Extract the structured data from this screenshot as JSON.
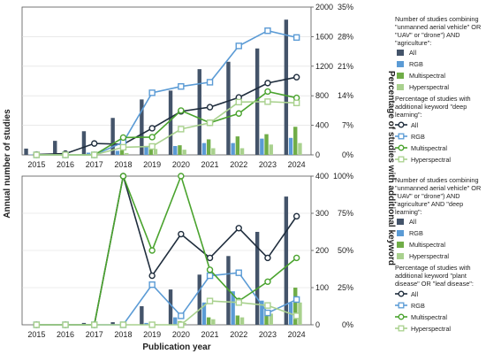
{
  "labels": {
    "y_left": "Annual number of studies",
    "y_right": "Percentage of studies with additional keyword",
    "x": "Publication year"
  },
  "colors": {
    "all_bar": "#44546a",
    "rgb_bar": "#5b9bd5",
    "multi_bar": "#70ad47",
    "hyper_bar": "#a9d18e",
    "all_line": "#1f2d3d",
    "rgb_line": "#5b9bd5",
    "multi_line": "#4aa32e",
    "hyper_line": "#a9d18e"
  },
  "chart_data": [
    {
      "type": "bar",
      "categories": [
        "2015",
        "2016",
        "2017",
        "2018",
        "2019",
        "2020",
        "2021",
        "2022",
        "2023",
        "2024"
      ],
      "series": [
        {
          "name": "All",
          "kind": "bar",
          "axis": "left",
          "values": [
            85,
            190,
            320,
            500,
            750,
            870,
            1160,
            1260,
            1440,
            1830
          ]
        },
        {
          "name": "RGB",
          "kind": "bar",
          "axis": "left",
          "values": [
            5,
            15,
            30,
            55,
            110,
            120,
            160,
            160,
            220,
            230
          ]
        },
        {
          "name": "Multispectral",
          "kind": "bar",
          "axis": "left",
          "values": [
            5,
            10,
            25,
            60,
            120,
            130,
            210,
            250,
            280,
            380
          ]
        },
        {
          "name": "Hyperspectral",
          "kind": "bar",
          "axis": "left",
          "values": [
            2,
            5,
            10,
            25,
            80,
            70,
            90,
            90,
            140,
            160
          ]
        },
        {
          "name": "All",
          "kind": "line",
          "axis": "right",
          "values": [
            0.1,
            0.3,
            2.7,
            2.5,
            6.3,
            10.3,
            11.3,
            13.6,
            17.0,
            18.4
          ]
        },
        {
          "name": "RGB",
          "kind": "line",
          "axis": "right",
          "values": [
            0,
            0,
            0,
            3.0,
            14.7,
            16.2,
            17.2,
            25.8,
            29.4,
            27.8
          ]
        },
        {
          "name": "Multispectral",
          "kind": "line",
          "axis": "right",
          "values": [
            0,
            0,
            0,
            4.1,
            4.2,
            10.5,
            7.6,
            9.8,
            15.0,
            13.5
          ]
        },
        {
          "name": "Hyperspectral",
          "kind": "line",
          "axis": "right",
          "values": [
            0,
            0,
            0,
            1.8,
            2.0,
            6.1,
            7.6,
            12.5,
            12.6,
            12.3
          ]
        }
      ],
      "y_left": {
        "ticks": [
          0,
          400,
          800,
          1200,
          1600,
          2000
        ],
        "range": [
          0,
          2000
        ]
      },
      "y_right": {
        "ticks": [
          "0%",
          "7%",
          "14%",
          "21%",
          "28%",
          "35%"
        ],
        "range": [
          0,
          35
        ]
      },
      "legend": {
        "position": "right",
        "bar_title": "Number of studies combining \"unmanned aerial vehicle\" OR \"UAV\" or \"drone\") AND \"agriculture\":",
        "line_title": "Percentage of studies with additional keyword \"deep learning\":",
        "bar_items": [
          "All",
          "RGB",
          "Multispectral",
          "Hyperspectral"
        ],
        "line_items": [
          "All",
          "RGB",
          "Multispectral",
          "Hyperspectral"
        ]
      }
    },
    {
      "type": "bar",
      "categories": [
        "2015",
        "2016",
        "2017",
        "2018",
        "2019",
        "2020",
        "2021",
        "2022",
        "2023",
        "2024"
      ],
      "series": [
        {
          "name": "All",
          "kind": "bar",
          "axis": "left",
          "values": [
            0,
            0,
            5,
            7,
            50,
            95,
            135,
            185,
            250,
            345
          ]
        },
        {
          "name": "RGB",
          "kind": "bar",
          "axis": "left",
          "values": [
            0,
            0,
            0,
            1,
            5,
            20,
            60,
            90,
            65,
            60
          ]
        },
        {
          "name": "Multispectral",
          "kind": "bar",
          "axis": "left",
          "values": [
            0,
            0,
            0,
            1,
            3,
            10,
            20,
            25,
            40,
            100
          ]
        },
        {
          "name": "Hyperspectral",
          "kind": "bar",
          "axis": "left",
          "values": [
            0,
            0,
            0,
            0,
            2,
            5,
            15,
            20,
            30,
            60
          ]
        },
        {
          "name": "All",
          "kind": "line",
          "axis": "right",
          "values": [
            0,
            0,
            0,
            100,
            33,
            61,
            45,
            65,
            45,
            73
          ]
        },
        {
          "name": "RGB",
          "kind": "line",
          "axis": "right",
          "values": [
            0,
            0,
            0,
            0,
            27,
            6,
            33,
            35,
            8,
            17
          ]
        },
        {
          "name": "Multispectral",
          "kind": "line",
          "axis": "right",
          "values": [
            0,
            0,
            0,
            100,
            50,
            100,
            37,
            16,
            29,
            45
          ]
        },
        {
          "name": "Hyperspectral",
          "kind": "line",
          "axis": "right",
          "values": [
            0,
            0,
            0,
            0,
            0,
            0,
            16,
            15,
            13,
            6
          ]
        }
      ],
      "y_left": {
        "ticks": [
          0,
          100,
          200,
          300,
          400
        ],
        "range": [
          0,
          400
        ]
      },
      "y_right": {
        "ticks": [
          "0%",
          "25%",
          "50%",
          "75%",
          "100%"
        ],
        "range": [
          0,
          100
        ]
      },
      "legend": {
        "position": "right",
        "bar_title": "Number of studies combining \"unmanned aerial vehicle\" OR \"UAV\" or \"drone\") AND \"agriculture\" AND \"deep learning\":",
        "line_title": "Percentage of studies with additional keyword \"plant disease\" OR \"leaf disease\":",
        "bar_items": [
          "All",
          "RGB",
          "Multispectral",
          "Hyperspectral"
        ],
        "line_items": [
          "All",
          "RGB",
          "Multispectral",
          "Hyperspectral"
        ]
      }
    }
  ]
}
